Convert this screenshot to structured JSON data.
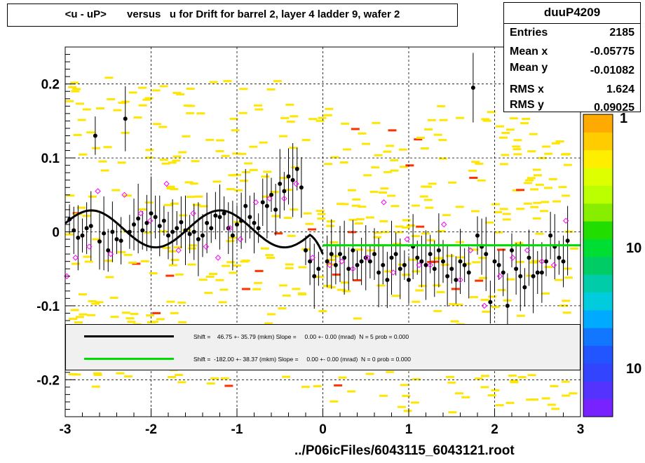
{
  "title": "<u - uP>       versus   u for Drift for barrel 2, layer 4 ladder 9, wafer 2",
  "stats": {
    "name": "duuP4209",
    "rows": [
      {
        "label": "Entries",
        "value": "2185"
      },
      {
        "label": "Mean x",
        "value": "-0.05775"
      },
      {
        "label": "Mean y",
        "value": "-0.01082"
      },
      {
        "label": "RMS x",
        "value": "1.624"
      },
      {
        "label": "RMS y",
        "value": "0.09025"
      }
    ]
  },
  "footer": "../P06icFiles/6043115_6043121.root",
  "zaxis": {
    "label_top": "1",
    "label_mid": "10",
    "label_bot": "10"
  },
  "legend": {
    "fit1": {
      "color": "#000000",
      "text": "Shift =    46.75 +- 35.79 (mkm) Slope =     0.00 +- 0.00 (mrad)  N = 5 prob = 0.000"
    },
    "fit2": {
      "color": "#00dd00",
      "text": "Shift =  -182.00 +- 38.37 (mkm) Slope =     0.00 +- 0.00 (mrad)  N = 0 prob = 0.000"
    }
  },
  "chart_data": {
    "type": "scatter",
    "xlim": [
      -3,
      3
    ],
    "ylim": [
      -0.25,
      0.25
    ],
    "xticks": [
      "-3",
      "-2",
      "-1",
      "0",
      "1",
      "2",
      "3"
    ],
    "yticks": [
      "-0.2",
      "-0.1",
      "0",
      "0.1",
      "0.2"
    ],
    "grid": true,
    "series": [
      {
        "role": "profile_mean",
        "x": [
          -2.95,
          -2.9,
          -2.85,
          -2.8,
          -2.75,
          -2.7,
          -2.65,
          -2.6,
          -2.55,
          -2.5,
          -2.45,
          -2.4,
          -2.35,
          -2.3,
          -2.25,
          -2.2,
          -2.15,
          -2.1,
          -2.05,
          -2.0,
          -1.95,
          -1.9,
          -1.85,
          -1.8,
          -1.75,
          -1.7,
          -1.65,
          -1.6,
          -1.55,
          -1.5,
          -1.45,
          -1.4,
          -1.35,
          -1.3,
          -1.25,
          -1.2,
          -1.15,
          -1.1,
          -1.05,
          -1.0,
          -0.95,
          -0.9,
          -0.85,
          -0.8,
          -0.75,
          -0.7,
          -0.65,
          -0.6,
          -0.55,
          -0.5,
          -0.45,
          -0.4,
          -0.35,
          -0.3,
          -0.25,
          -0.2,
          -0.15,
          -0.1,
          -0.05,
          0.05,
          0.1,
          0.15,
          0.2,
          0.25,
          0.3,
          0.35,
          0.4,
          0.45,
          0.5,
          0.55,
          0.6,
          0.65,
          0.7,
          0.75,
          0.8,
          0.85,
          0.9,
          0.95,
          1.0,
          1.05,
          1.1,
          1.15,
          1.2,
          1.25,
          1.3,
          1.35,
          1.4,
          1.45,
          1.5,
          1.55,
          1.6,
          1.65,
          1.7,
          1.75,
          1.8,
          1.85,
          1.9,
          1.95,
          2.0,
          2.05,
          2.1,
          2.15,
          2.2,
          2.25,
          2.3,
          2.35,
          2.4,
          2.45,
          2.5,
          2.55,
          2.6,
          2.65,
          2.7,
          2.75,
          2.8,
          2.85
        ],
        "y": [
          0.017,
          0.002,
          -0.008,
          -0.005,
          0.005,
          0.008,
          0.13,
          -0.013,
          -0.002,
          -0.025,
          0.0,
          -0.01,
          -0.012,
          0.153,
          0.0,
          0.01,
          0.018,
          0.002,
          0.012,
          0.025,
          0.02,
          0.008,
          0.015,
          -0.005,
          0.0,
          0.005,
          0.013,
          0.002,
          -0.003,
          0.0,
          -0.01,
          -0.005,
          0.012,
          0.005,
          0.022,
          0.02,
          0.025,
          0.005,
          -0.005,
          0.01,
          0.015,
          0.035,
          0.02,
          0.012,
          0.005,
          0.04,
          0.035,
          0.05,
          0.03,
          0.065,
          0.055,
          0.075,
          0.07,
          0.085,
          0.06,
          -0.025,
          -0.04,
          -0.06,
          -0.05,
          -0.04,
          -0.03,
          -0.045,
          -0.03,
          -0.035,
          -0.05,
          -0.025,
          -0.045,
          -0.04,
          -0.035,
          -0.04,
          -0.03,
          -0.055,
          -0.045,
          -0.065,
          -0.035,
          -0.03,
          -0.05,
          -0.045,
          -0.065,
          -0.02,
          -0.035,
          -0.04,
          -0.045,
          -0.03,
          -0.05,
          -0.025,
          -0.04,
          -0.06,
          -0.05,
          -0.065,
          -0.04,
          -0.045,
          -0.055,
          0.195,
          -0.005,
          -0.02,
          -0.03,
          -0.095,
          -0.04,
          -0.045,
          -0.055,
          -0.1,
          -0.025,
          -0.05,
          -0.06,
          -0.075,
          -0.035,
          -0.06,
          -0.055,
          -0.055,
          -0.04,
          -0.005,
          -0.02,
          -0.035,
          -0.04,
          -0.012
        ]
      },
      {
        "role": "open_markers",
        "x": [
          -2.98,
          -2.88,
          -2.72,
          -2.62,
          -2.47,
          -2.31,
          -2.12,
          -2.01,
          -1.82,
          -1.68,
          -1.51,
          -1.36,
          -1.22,
          -1.08,
          -0.96,
          -0.78,
          -0.62,
          -0.45,
          -0.31,
          -0.12,
          0.08,
          0.22,
          0.35,
          0.52,
          0.71,
          0.82,
          0.98,
          1.12,
          1.25,
          1.41,
          1.6,
          1.72,
          1.88,
          2.06,
          2.21,
          2.38,
          2.55,
          2.69,
          2.83
        ],
        "y": [
          -0.06,
          -0.035,
          -0.02,
          0.055,
          -0.03,
          0.05,
          0.025,
          0.015,
          0.065,
          -0.025,
          0.025,
          -0.02,
          -0.035,
          0.005,
          -0.01,
          0.04,
          0.045,
          0.045,
          0.065,
          -0.035,
          -0.045,
          -0.04,
          -0.05,
          -0.035,
          0.04,
          -0.055,
          -0.01,
          -0.045,
          -0.045,
          0.01,
          -0.065,
          -0.025,
          -0.1,
          -0.06,
          -0.035,
          -0.025,
          -0.04,
          -0.045,
          0.015
        ]
      }
    ],
    "fits": [
      {
        "name": "fit1",
        "x_range": [
          -3.0,
          0.0
        ],
        "y_start": 0.017,
        "amplitude": 0.025,
        "frequency_cycles": 2.0
      },
      {
        "name": "fit2",
        "x_range": [
          0.0,
          3.0
        ],
        "y": -0.0182
      }
    ],
    "colormap_levels": [
      "#7722ff",
      "#5533ff",
      "#3344ff",
      "#2255ff",
      "#1177ff",
      "#00aaff",
      "#00ccdd",
      "#00ccaa",
      "#00cc66",
      "#00dd33",
      "#22dd00",
      "#88ee00",
      "#bbff00",
      "#ddff00",
      "#ffee00",
      "#ffcc00",
      "#ffaa00"
    ]
  }
}
